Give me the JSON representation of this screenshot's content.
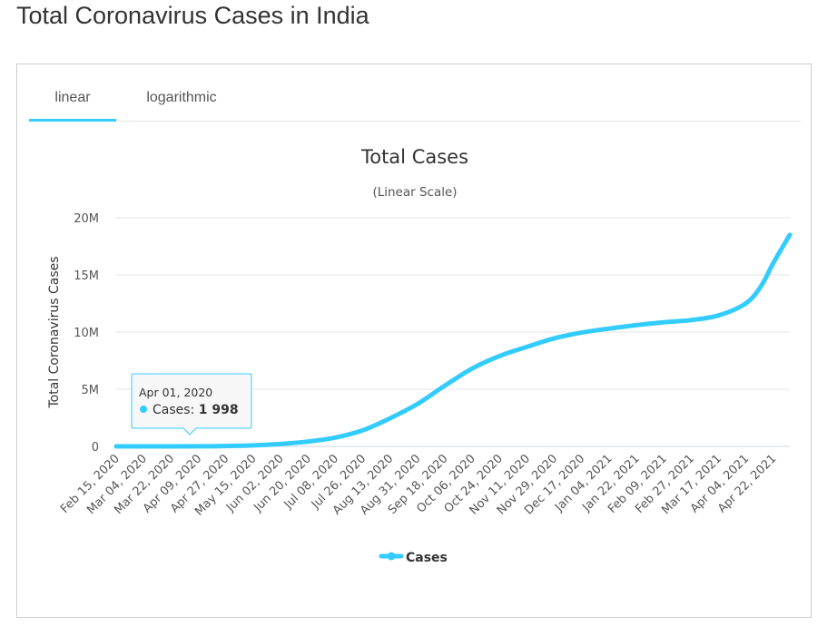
{
  "page": {
    "title": "Total Coronavirus Cases in India"
  },
  "tabs": [
    {
      "label": "linear",
      "active": true
    },
    {
      "label": "logarithmic",
      "active": false
    }
  ],
  "colors": {
    "series": "#33ccff",
    "tab_active": "#33ccff",
    "grid": "#e6e6e6"
  },
  "chart_data": {
    "type": "line",
    "title": "Total Cases",
    "subtitle": "(Linear Scale)",
    "ylabel": "Total Coronavirus Cases",
    "xlabel": "",
    "ylim": [
      0,
      20000000
    ],
    "y_ticks": [
      "0",
      "5M",
      "10M",
      "15M",
      "20M"
    ],
    "y_tick_values": [
      0,
      5000000,
      10000000,
      15000000,
      20000000
    ],
    "x_tick_labels": [
      "Feb 15, 2020",
      "Mar 04, 2020",
      "Mar 22, 2020",
      "Apr 09, 2020",
      "Apr 27, 2020",
      "May 15, 2020",
      "Jun 02, 2020",
      "Jun 20, 2020",
      "Jul 08, 2020",
      "Jul 26, 2020",
      "Aug 13, 2020",
      "Aug 31, 2020",
      "Sep 18, 2020",
      "Oct 06, 2020",
      "Oct 24, 2020",
      "Nov 11, 2020",
      "Nov 29, 2020",
      "Dec 17, 2020",
      "Jan 04, 2021",
      "Jan 22, 2021",
      "Feb 09, 2021",
      "Feb 27, 2021",
      "Mar 17, 2021",
      "Apr 04, 2021",
      "Apr 22, 2021"
    ],
    "grid": true,
    "legend_position": "bottom-center",
    "series": [
      {
        "name": "Cases",
        "x": [
          "2020-02-15",
          "2020-03-04",
          "2020-03-22",
          "2020-04-09",
          "2020-04-27",
          "2020-05-15",
          "2020-06-02",
          "2020-06-20",
          "2020-07-08",
          "2020-07-26",
          "2020-08-13",
          "2020-08-31",
          "2020-09-18",
          "2020-10-06",
          "2020-10-24",
          "2020-11-11",
          "2020-11-29",
          "2020-12-17",
          "2021-01-04",
          "2021-01-22",
          "2021-02-09",
          "2021-02-27",
          "2021-03-17",
          "2021-04-04",
          "2021-04-14",
          "2021-04-22",
          "2021-05-03"
        ],
        "values": [
          3,
          30,
          400,
          6000,
          30000,
          85000,
          210000,
          420000,
          770000,
          1400000,
          2450000,
          3700000,
          5300000,
          6800000,
          7900000,
          8700000,
          9450000,
          9950000,
          10300000,
          10600000,
          10850000,
          11050000,
          11450000,
          12500000,
          14000000,
          16000000,
          18500000
        ]
      }
    ]
  },
  "tooltip": {
    "date": "Apr 01, 2020",
    "series": "Cases",
    "value": "1 998",
    "x": "2020-04-01"
  }
}
